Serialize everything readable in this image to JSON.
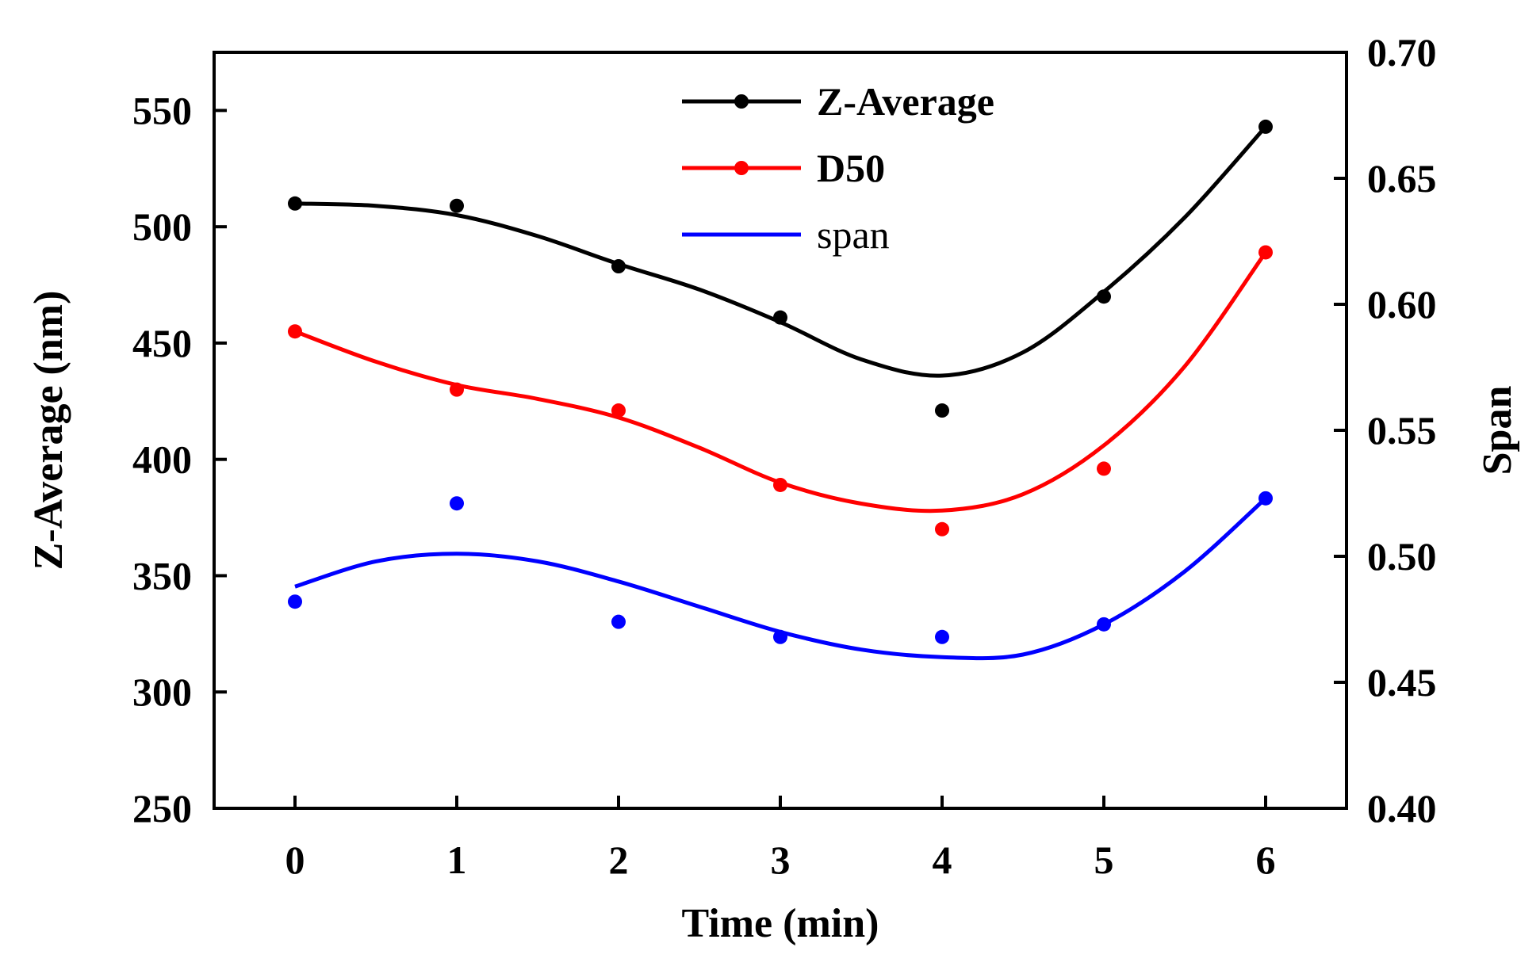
{
  "chart_data": {
    "type": "line",
    "xlabel": "Time (min)",
    "ylabel": "Z-Average (nm)",
    "y2label": "Span",
    "x": [
      0,
      1,
      2,
      3,
      4,
      5,
      6
    ],
    "xlim": [
      -0.5,
      6.5
    ],
    "ylim": [
      250,
      575
    ],
    "y2lim": [
      0.4,
      0.7
    ],
    "xticks": [
      "0",
      "1",
      "2",
      "3",
      "4",
      "5",
      "6"
    ],
    "yticks": [
      "250",
      "300",
      "350",
      "400",
      "450",
      "500",
      "550"
    ],
    "y2ticks": [
      "0.40",
      "0.45",
      "0.50",
      "0.55",
      "0.60",
      "0.65",
      "0.70"
    ],
    "grid": false,
    "legend_position": "top-center",
    "series": [
      {
        "name": "Z-Average",
        "axis": "left",
        "color": "#000000",
        "bold_label": true,
        "marker_in_legend": true,
        "values": [
          510,
          509,
          483,
          461,
          421,
          470,
          543
        ],
        "fit": [
          [
            0,
            510
          ],
          [
            0.5,
            509
          ],
          [
            1,
            505
          ],
          [
            1.5,
            496
          ],
          [
            2,
            484
          ],
          [
            2.5,
            473
          ],
          [
            3,
            459
          ],
          [
            3.5,
            443
          ],
          [
            4,
            436
          ],
          [
            4.5,
            446
          ],
          [
            5,
            472
          ],
          [
            5.5,
            504
          ],
          [
            6,
            543
          ]
        ]
      },
      {
        "name": "D50",
        "axis": "left",
        "color": "#ff0000",
        "bold_label": true,
        "marker_in_legend": true,
        "values": [
          455,
          430,
          421,
          389,
          370,
          396,
          489
        ],
        "fit": [
          [
            0,
            455
          ],
          [
            0.5,
            442
          ],
          [
            1,
            432
          ],
          [
            1.5,
            426
          ],
          [
            2,
            418
          ],
          [
            2.5,
            405
          ],
          [
            3,
            390
          ],
          [
            3.5,
            381
          ],
          [
            4,
            378
          ],
          [
            4.5,
            385
          ],
          [
            5,
            406
          ],
          [
            5.5,
            440
          ],
          [
            6,
            489
          ]
        ]
      },
      {
        "name": "span",
        "axis": "right",
        "color": "#0000ff",
        "bold_label": false,
        "marker_in_legend": false,
        "values": [
          0.482,
          0.521,
          0.474,
          0.468,
          0.468,
          0.473,
          0.523
        ],
        "fit": [
          [
            0,
            0.488
          ],
          [
            0.5,
            0.498
          ],
          [
            1,
            0.501
          ],
          [
            1.5,
            0.498
          ],
          [
            2,
            0.49
          ],
          [
            2.5,
            0.48
          ],
          [
            3,
            0.47
          ],
          [
            3.5,
            0.463
          ],
          [
            4,
            0.46
          ],
          [
            4.5,
            0.461
          ],
          [
            5,
            0.473
          ],
          [
            5.5,
            0.494
          ],
          [
            6,
            0.523
          ]
        ]
      }
    ]
  }
}
